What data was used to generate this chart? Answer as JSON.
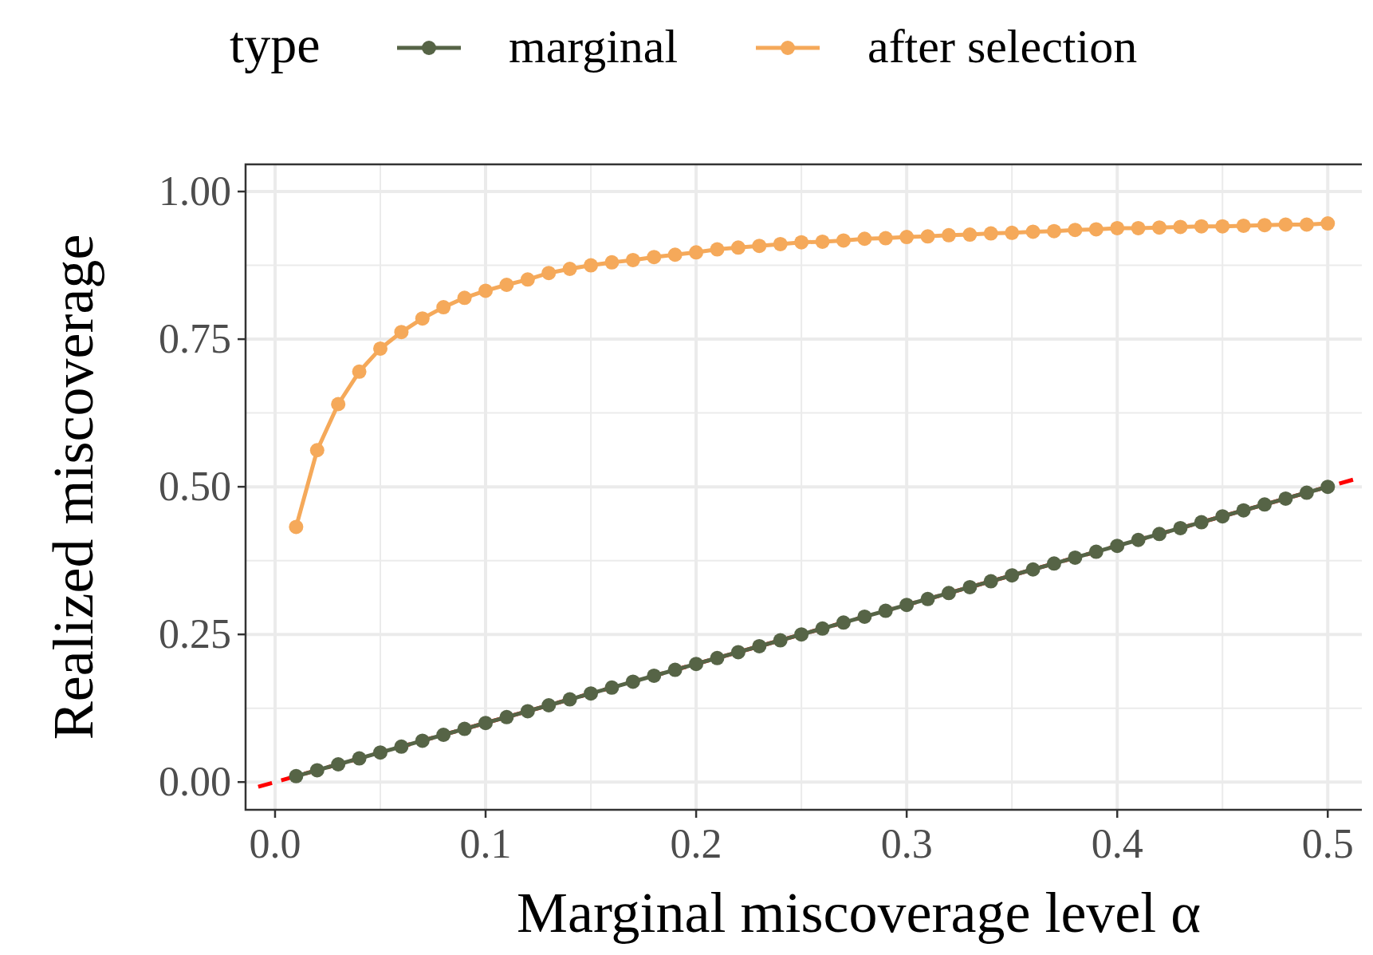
{
  "chart_data": {
    "type": "line",
    "xlabel": "Marginal miscoverage level α",
    "ylabel": "Realized miscoverage",
    "legend_title": "type",
    "legend": "top",
    "grid": true,
    "marker": "circle",
    "line_style": "solid",
    "x": [
      0.01,
      0.02,
      0.03,
      0.04,
      0.05,
      0.06,
      0.07,
      0.08,
      0.09,
      0.1,
      0.11,
      0.12,
      0.13,
      0.14,
      0.15,
      0.16,
      0.17,
      0.18,
      0.19,
      0.2,
      0.21,
      0.22,
      0.23,
      0.24,
      0.25,
      0.26,
      0.27,
      0.28,
      0.29,
      0.3,
      0.31,
      0.32,
      0.33,
      0.34,
      0.35,
      0.36,
      0.37,
      0.38,
      0.39,
      0.4,
      0.41,
      0.42,
      0.43,
      0.44,
      0.45,
      0.46,
      0.47,
      0.48,
      0.49,
      0.5
    ],
    "xlim": [
      -0.014,
      0.523
    ],
    "ylim": [
      -0.047,
      1.046
    ],
    "xticks": [
      {
        "value": 0,
        "label": "0.0"
      },
      {
        "value": 0.1,
        "label": "0.1"
      },
      {
        "value": 0.2,
        "label": "0.2"
      },
      {
        "value": 0.3,
        "label": "0.3"
      },
      {
        "value": 0.4,
        "label": "0.4"
      },
      {
        "value": 0.5,
        "label": "0.5"
      }
    ],
    "yticks": [
      {
        "value": 0,
        "label": "0.00"
      },
      {
        "value": 0.25,
        "label": "0.25"
      },
      {
        "value": 0.5,
        "label": "0.50"
      },
      {
        "value": 0.75,
        "label": "0.75"
      },
      {
        "value": 1,
        "label": "1.00"
      }
    ],
    "series": [
      {
        "x": [
          -0.008,
          0.512
        ],
        "values": [
          -0.008,
          0.512
        ],
        "color": "#ff0000",
        "line_style": "dashed",
        "marker": "none"
      },
      {
        "name": "marginal",
        "color": "#566446",
        "values": [
          0.01,
          0.02,
          0.03,
          0.04,
          0.05,
          0.06,
          0.07,
          0.08,
          0.09,
          0.1,
          0.11,
          0.12,
          0.13,
          0.14,
          0.15,
          0.16,
          0.17,
          0.18,
          0.19,
          0.2,
          0.21,
          0.22,
          0.23,
          0.24,
          0.25,
          0.26,
          0.27,
          0.28,
          0.29,
          0.3,
          0.31,
          0.32,
          0.33,
          0.34,
          0.35,
          0.36,
          0.37,
          0.38,
          0.39,
          0.4,
          0.41,
          0.42,
          0.43,
          0.44,
          0.45,
          0.46,
          0.47,
          0.48,
          0.49,
          0.5
        ]
      },
      {
        "name": "after selection",
        "color": "#f5a95a",
        "values": [
          0.432,
          0.562,
          0.64,
          0.695,
          0.734,
          0.762,
          0.785,
          0.804,
          0.82,
          0.832,
          0.842,
          0.851,
          0.862,
          0.869,
          0.875,
          0.88,
          0.884,
          0.889,
          0.893,
          0.897,
          0.902,
          0.905,
          0.908,
          0.911,
          0.914,
          0.915,
          0.917,
          0.92,
          0.921,
          0.923,
          0.924,
          0.926,
          0.927,
          0.929,
          0.93,
          0.932,
          0.933,
          0.935,
          0.936,
          0.938,
          0.938,
          0.939,
          0.94,
          0.941,
          0.941,
          0.942,
          0.943,
          0.944,
          0.944,
          0.946
        ]
      }
    ]
  }
}
